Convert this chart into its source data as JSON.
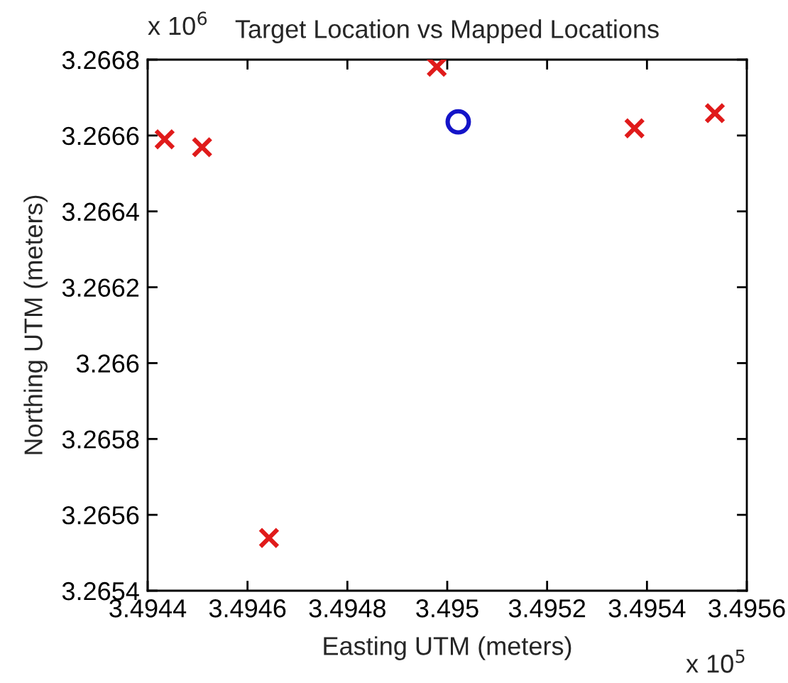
{
  "chart_data": {
    "type": "scatter",
    "title": "Target Location vs Mapped Locations",
    "xlabel": "Easting UTM (meters)",
    "ylabel": "Northing UTM (meters)",
    "series": [
      {
        "color": "#e01b1b",
        "marker": "cross",
        "x": [
          3.494434,
          3.494509,
          3.494643,
          3.494979,
          3.495375,
          3.495536
        ],
        "values": [
          3.26659,
          3.266569,
          3.265539,
          3.266781,
          3.266619,
          3.266659
        ]
      },
      {
        "color": "#1414c8",
        "marker": "circle",
        "x": [
          3.495022
        ],
        "values": [
          3.266636
        ]
      }
    ],
    "xlim": [
      3.4944,
      3.4956
    ],
    "xticks": [
      3.4944,
      3.4946,
      3.4948,
      3.495,
      3.4952,
      3.4954,
      3.4956
    ],
    "ylim": [
      3.2654,
      3.2668
    ],
    "yticks": [
      3.2654,
      3.2656,
      3.2658,
      3.266,
      3.2662,
      3.2664,
      3.2666,
      3.2668
    ],
    "annotations": [
      "x 10$^{6}$",
      "x 10$^{5}$"
    ],
    "grid": false,
    "legend": false
  }
}
